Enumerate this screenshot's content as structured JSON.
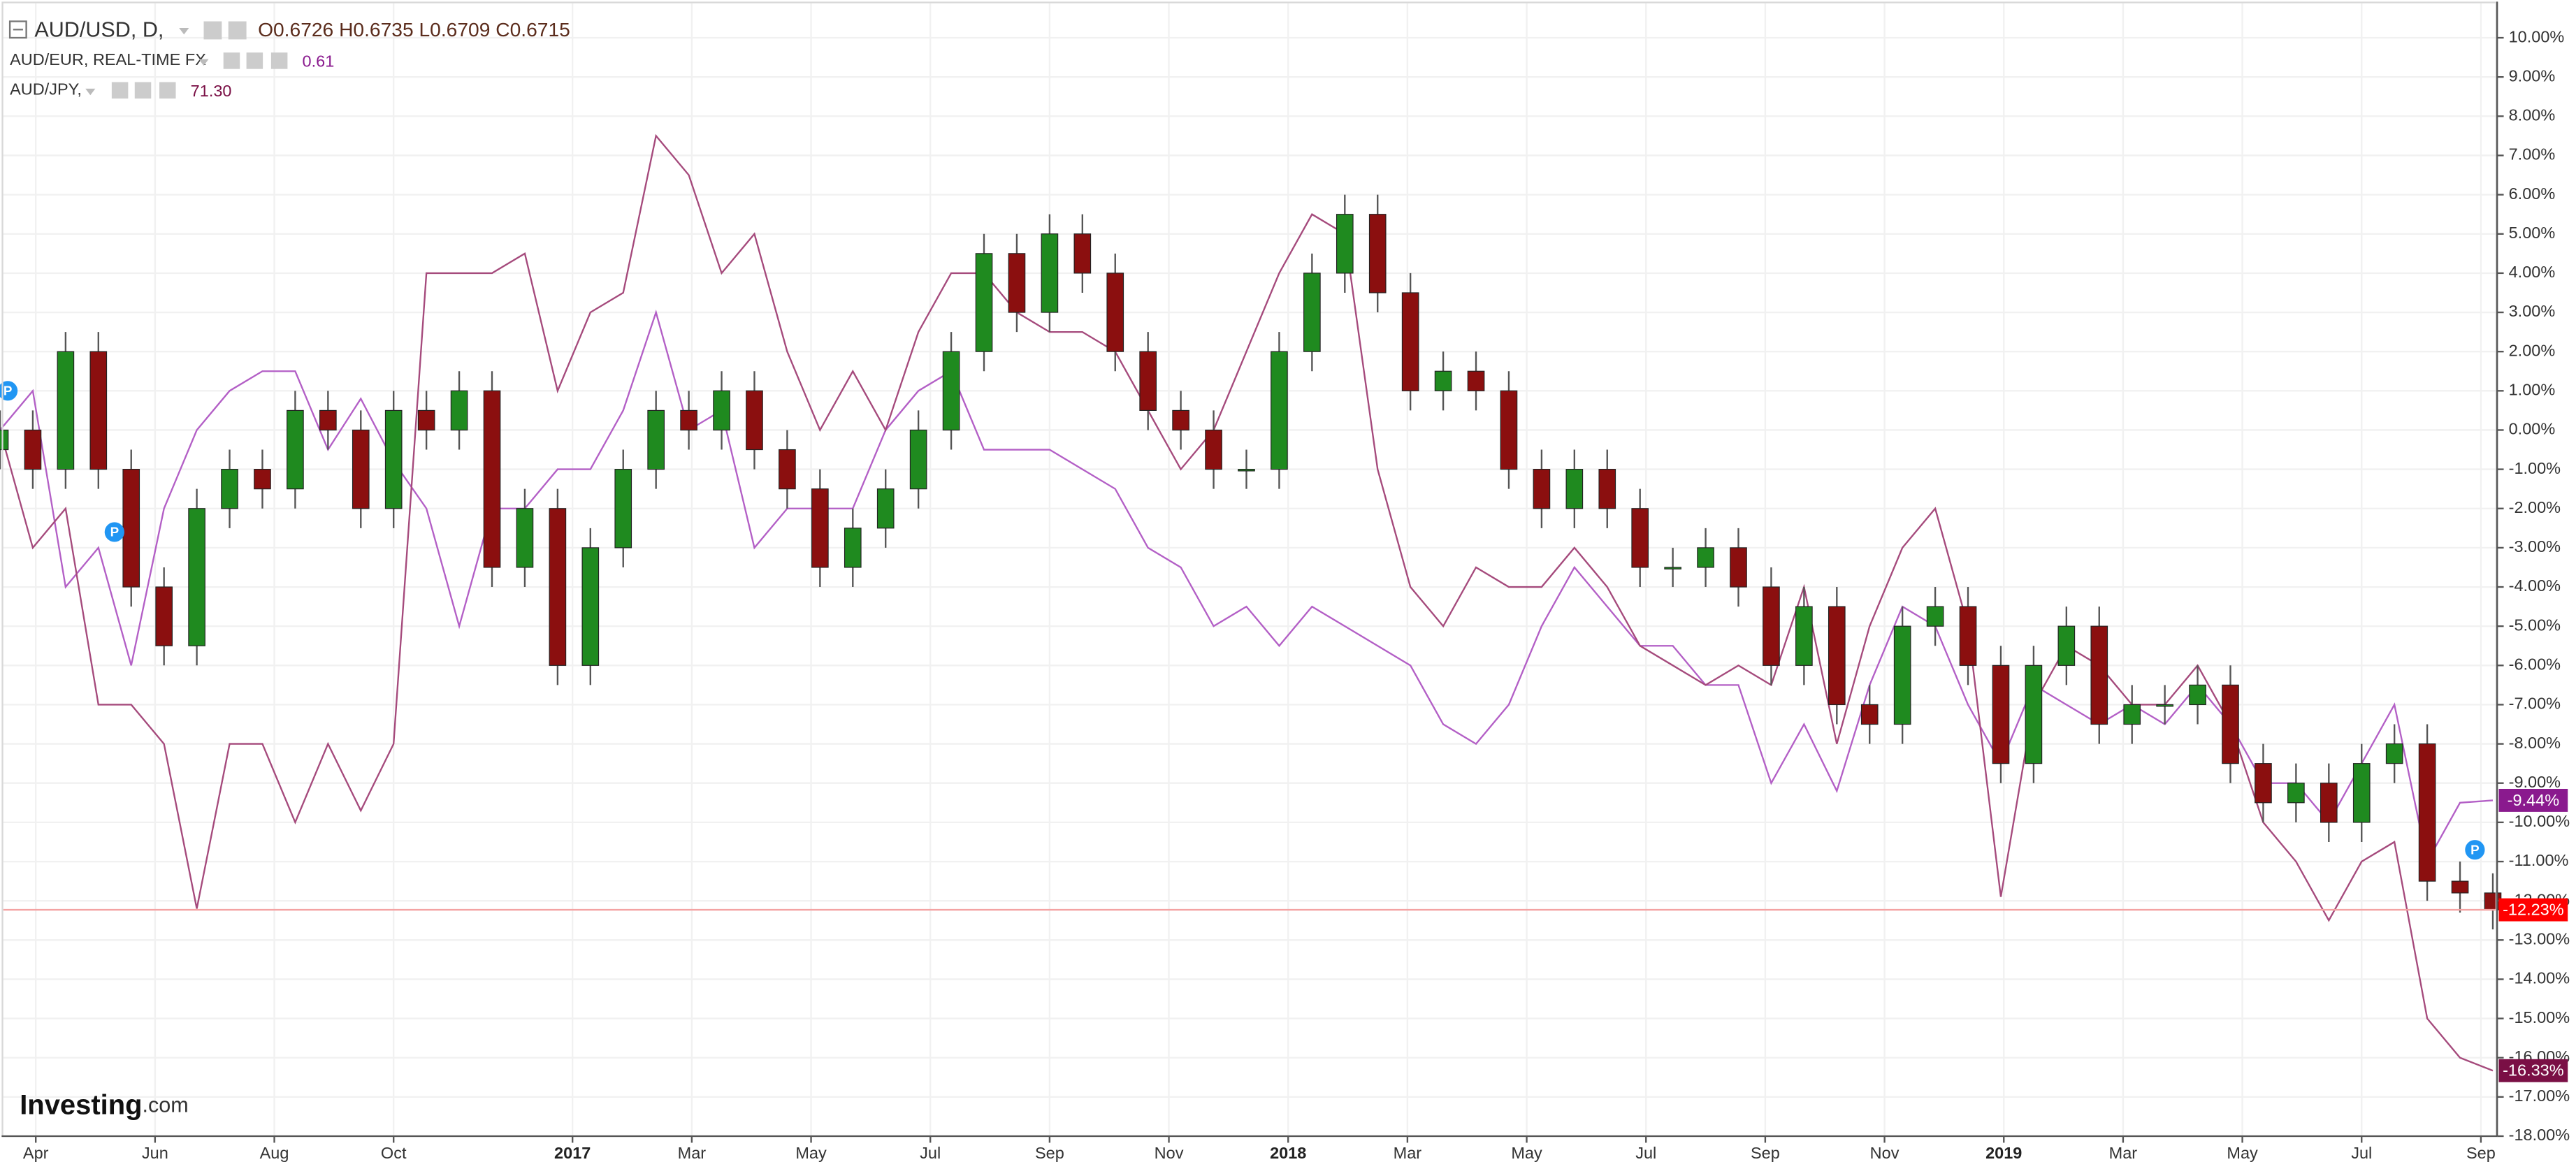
{
  "chart_data": {
    "type": "candlestick",
    "grid": true,
    "xlim": [
      -0.6,
      41.3
    ],
    "ylim": [
      -18,
      10.9
    ],
    "xticks": [
      {
        "value": 0,
        "label": "Apr"
      },
      {
        "value": 2,
        "label": "Jun"
      },
      {
        "value": 4,
        "label": "Aug"
      },
      {
        "value": 6,
        "label": "Oct"
      },
      {
        "value": 9,
        "label": "2017"
      },
      {
        "value": 11,
        "label": "Mar"
      },
      {
        "value": 13,
        "label": "May"
      },
      {
        "value": 15,
        "label": "Jul"
      },
      {
        "value": 17,
        "label": "Sep"
      },
      {
        "value": 19,
        "label": "Nov"
      },
      {
        "value": 21,
        "label": "2018"
      },
      {
        "value": 23,
        "label": "Mar"
      },
      {
        "value": 25,
        "label": "May"
      },
      {
        "value": 27,
        "label": "Jul"
      },
      {
        "value": 29,
        "label": "Sep"
      },
      {
        "value": 31,
        "label": "Nov"
      },
      {
        "value": 33,
        "label": "2019"
      },
      {
        "value": 35,
        "label": "Mar"
      },
      {
        "value": 37,
        "label": "May"
      },
      {
        "value": 39,
        "label": "Jul"
      },
      {
        "value": 41,
        "label": "Sep"
      }
    ],
    "yticks": [
      {
        "value": 10,
        "label": "10.00%"
      },
      {
        "value": 9,
        "label": "9.00%"
      },
      {
        "value": 8,
        "label": "8.00%"
      },
      {
        "value": 7,
        "label": "7.00%"
      },
      {
        "value": 6,
        "label": "6.00%"
      },
      {
        "value": 5,
        "label": "5.00%"
      },
      {
        "value": 4,
        "label": "4.00%"
      },
      {
        "value": 3,
        "label": "3.00%"
      },
      {
        "value": 2,
        "label": "2.00%"
      },
      {
        "value": 1,
        "label": "1.00%"
      },
      {
        "value": 0,
        "label": "0.00%"
      },
      {
        "value": -1,
        "label": "-1.00%"
      },
      {
        "value": -2,
        "label": "-2.00%"
      },
      {
        "value": -3,
        "label": "-3.00%"
      },
      {
        "value": -4,
        "label": "-4.00%"
      },
      {
        "value": -5,
        "label": "-5.00%"
      },
      {
        "value": -6,
        "label": "-6.00%"
      },
      {
        "value": -7,
        "label": "-7.00%"
      },
      {
        "value": -8,
        "label": "-8.00%"
      },
      {
        "value": -9,
        "label": "-9.00%"
      },
      {
        "value": -10,
        "label": "-10.00%"
      },
      {
        "value": -11,
        "label": "-11.00%"
      },
      {
        "value": -12,
        "label": "-12.00%"
      },
      {
        "value": -13,
        "label": "-13.00%"
      },
      {
        "value": -14,
        "label": "-14.00%"
      },
      {
        "value": -15,
        "label": "-15.00%"
      },
      {
        "value": -16,
        "label": "-16.00%"
      },
      {
        "value": -17,
        "label": "-17.00%"
      },
      {
        "value": -18,
        "label": "-18.00%"
      }
    ],
    "x": [
      -0.6,
      -0.05,
      0.5,
      1.05,
      1.6,
      2.15,
      2.7,
      3.25,
      3.8,
      4.35,
      4.9,
      5.45,
      6,
      6.55,
      7.1,
      7.65,
      8.2,
      8.75,
      9.3,
      9.85,
      10.4,
      10.95,
      11.5,
      12.05,
      12.6,
      13.15,
      13.7,
      14.25,
      14.8,
      15.35,
      15.9,
      16.45,
      17,
      17.55,
      18.1,
      18.65,
      19.2,
      19.75,
      20.3,
      20.85,
      21.4,
      21.95,
      22.5,
      23.05,
      23.6,
      24.15,
      24.7,
      25.25,
      25.8,
      26.35,
      26.9,
      27.45,
      28,
      28.55,
      29.1,
      29.65,
      30.2,
      30.75,
      31.3,
      31.85,
      32.4,
      32.95,
      33.5,
      34.05,
      34.6,
      35.15,
      35.7,
      36.25,
      36.8,
      37.35,
      37.9,
      38.45,
      39,
      39.55,
      40.1,
      40.65,
      41.2
    ],
    "series": [
      {
        "name": "AUD/USD, D,",
        "kind": "candlestick",
        "legend_values": "O0.6726 H0.6735 L0.6709 C0.6715",
        "end_label": "-12.23%",
        "up_color": "#1f8a1f",
        "down_color": "#8b0f0f",
        "label_color": "#ff0000",
        "open": [
          -0.5,
          0,
          -1,
          2,
          -1,
          -4,
          -5.5,
          -2,
          -1,
          -1.5,
          0.5,
          0,
          -2,
          0.5,
          0,
          1,
          -3.5,
          -2,
          -6,
          -3,
          -1,
          0.5,
          0,
          1,
          -0.5,
          -1.5,
          -3.5,
          -2.5,
          -1.5,
          0,
          2,
          4.5,
          3,
          5,
          4,
          2,
          0.5,
          0,
          -1,
          -1,
          2,
          4,
          5.5,
          3.5,
          1,
          1.5,
          1,
          -1,
          -2,
          -1,
          -2,
          -3.5,
          -3.5,
          -3,
          -4,
          -6,
          -4.5,
          -7,
          -7.5,
          -5,
          -4.5,
          -6,
          -8.5,
          -6,
          -5,
          -7.5,
          -7,
          -7,
          -6.5,
          -8.5,
          -9.5,
          -9,
          -10,
          -8.5,
          -8,
          -11.5,
          -11.8
        ],
        "high": [
          0.5,
          0.5,
          2.5,
          2.5,
          -0.5,
          -3.5,
          -1.5,
          -0.5,
          -0.5,
          1,
          1,
          0.5,
          1,
          1,
          1.5,
          1.5,
          -1.5,
          -1.5,
          -2.5,
          -0.5,
          1,
          1,
          1.5,
          1.5,
          0,
          -1,
          -2,
          -1,
          0.5,
          2.5,
          5,
          5,
          5.5,
          5.5,
          4.5,
          2.5,
          1,
          0.5,
          -0.5,
          2.5,
          4.5,
          6,
          6,
          4,
          2,
          2,
          1.5,
          -0.5,
          -0.5,
          -0.5,
          -1.5,
          -3,
          -2.5,
          -2.5,
          -3.5,
          -4,
          -4,
          -6.5,
          -4.5,
          -4,
          -4,
          -5.5,
          -5.5,
          -4.5,
          -4.5,
          -6.5,
          -6.5,
          -6,
          -6,
          -8,
          -8.5,
          -8.5,
          -8,
          -7.5,
          -7.5,
          -11,
          -11.3
        ],
        "low": [
          -1,
          -1.5,
          -1.5,
          -1.5,
          -4.5,
          -6,
          -6,
          -2.5,
          -2,
          -2,
          -0.5,
          -2.5,
          -2.5,
          -0.5,
          -0.5,
          -4,
          -4,
          -6.5,
          -6.5,
          -3.5,
          -1.5,
          -0.5,
          -0.5,
          -1,
          -2,
          -4,
          -4,
          -3,
          -2,
          -0.5,
          1.5,
          2.5,
          2.5,
          3.5,
          1.5,
          0,
          -0.5,
          -1.5,
          -1.5,
          -1.5,
          1.5,
          3.5,
          3,
          0.5,
          0.5,
          0.5,
          -1.5,
          -2.5,
          -2.5,
          -2.5,
          -4,
          -4,
          -4,
          -4.5,
          -6.5,
          -6.5,
          -7.5,
          -8,
          -8,
          -5.5,
          -6.5,
          -9,
          -9,
          -6.5,
          -8,
          -8,
          -7.5,
          -7.5,
          -9,
          -10,
          -10,
          -10.5,
          -10.5,
          -9,
          -12,
          -12.3,
          -12.73
        ],
        "close": [
          0,
          -1,
          2,
          -1,
          -4,
          -5.5,
          -2,
          -1,
          -1.5,
          0.5,
          0,
          -2,
          0.5,
          0,
          1,
          -3.5,
          -2,
          -6,
          -3,
          -1,
          0.5,
          0,
          1,
          -0.5,
          -1.5,
          -3.5,
          -2.5,
          -1.5,
          0,
          2,
          4.5,
          3,
          5,
          4,
          2,
          0.5,
          0,
          -1,
          -1,
          2,
          4,
          5.5,
          3.5,
          1,
          1.5,
          1,
          -1,
          -2,
          -1,
          -2,
          -3.5,
          -3.5,
          -3,
          -4,
          -6,
          -4.5,
          -7,
          -7.5,
          -5,
          -4.5,
          -6,
          -8.5,
          -6,
          -5,
          -7.5,
          -7,
          -7,
          -6.5,
          -8.5,
          -9.5,
          -9,
          -10,
          -8.5,
          -8,
          -11.5,
          -11.8,
          -12.23
        ]
      },
      {
        "name": "AUD/EUR, REAL-TIME FX",
        "kind": "line",
        "legend_values": "0.61",
        "end_label": "-9.44%",
        "color": "#b35fc6",
        "label_color": "#8a1a8e",
        "values": [
          0,
          1,
          -4,
          -3,
          -6,
          -2,
          0,
          1,
          1.5,
          1.5,
          -0.5,
          0.8,
          -0.8,
          -2,
          -5,
          -2,
          -2,
          -1,
          -1,
          0.5,
          3,
          0,
          0.5,
          -3,
          -2,
          -2,
          -2,
          0,
          1,
          1.5,
          -0.5,
          -0.5,
          -0.5,
          -1,
          -1.5,
          -3,
          -3.5,
          -5,
          -4.5,
          -5.5,
          -4.5,
          -5,
          -5.5,
          -6,
          -7.5,
          -8,
          -7,
          -5,
          -3.5,
          -4.5,
          -5.5,
          -5.5,
          -6.5,
          -6.5,
          -9,
          -7.5,
          -9.2,
          -6.5,
          -4.5,
          -5,
          -7,
          -8.5,
          -6.5,
          -7,
          -7.5,
          -7,
          -7.5,
          -6.5,
          -7.5,
          -9,
          -9,
          -10,
          -8.5,
          -7,
          -11,
          -9.5,
          -9.44
        ]
      },
      {
        "name": "AUD/JPY,",
        "kind": "line",
        "legend_values": "71.30",
        "end_label": "-16.33%",
        "color": "#a54a7c",
        "label_color": "#7a0f45",
        "values": [
          0,
          -3,
          -2,
          -7,
          -7,
          -8,
          -12.2,
          -8,
          -8,
          -10,
          -8,
          -9.7,
          -8,
          4,
          4,
          4,
          4.5,
          1,
          3,
          3.5,
          7.5,
          6.5,
          4,
          5,
          2,
          0,
          1.5,
          0,
          2.5,
          4,
          4,
          3,
          2.5,
          2.5,
          2,
          0.5,
          -1,
          0,
          2,
          4,
          5.5,
          5,
          -1,
          -4,
          -5,
          -3.5,
          -4,
          -4,
          -3,
          -4,
          -5.5,
          -6,
          -6.5,
          -6,
          -6.5,
          -4,
          -8,
          -5,
          -3,
          -2,
          -5,
          -11.9,
          -7,
          -5.5,
          -6,
          -7,
          -7,
          -6,
          -7.5,
          -10,
          -11,
          -12.5,
          -11,
          -10.5,
          -15,
          -16,
          -16.33
        ]
      }
    ],
    "markers": [
      {
        "x": -0.47,
        "y": 1,
        "label": "P"
      },
      {
        "x": 1.32,
        "y": -2.6,
        "label": "P"
      },
      {
        "x": 40.9,
        "y": -10.7,
        "label": "P"
      }
    ],
    "watermark": {
      "brand": "Investing",
      "suffix": ".com"
    }
  }
}
